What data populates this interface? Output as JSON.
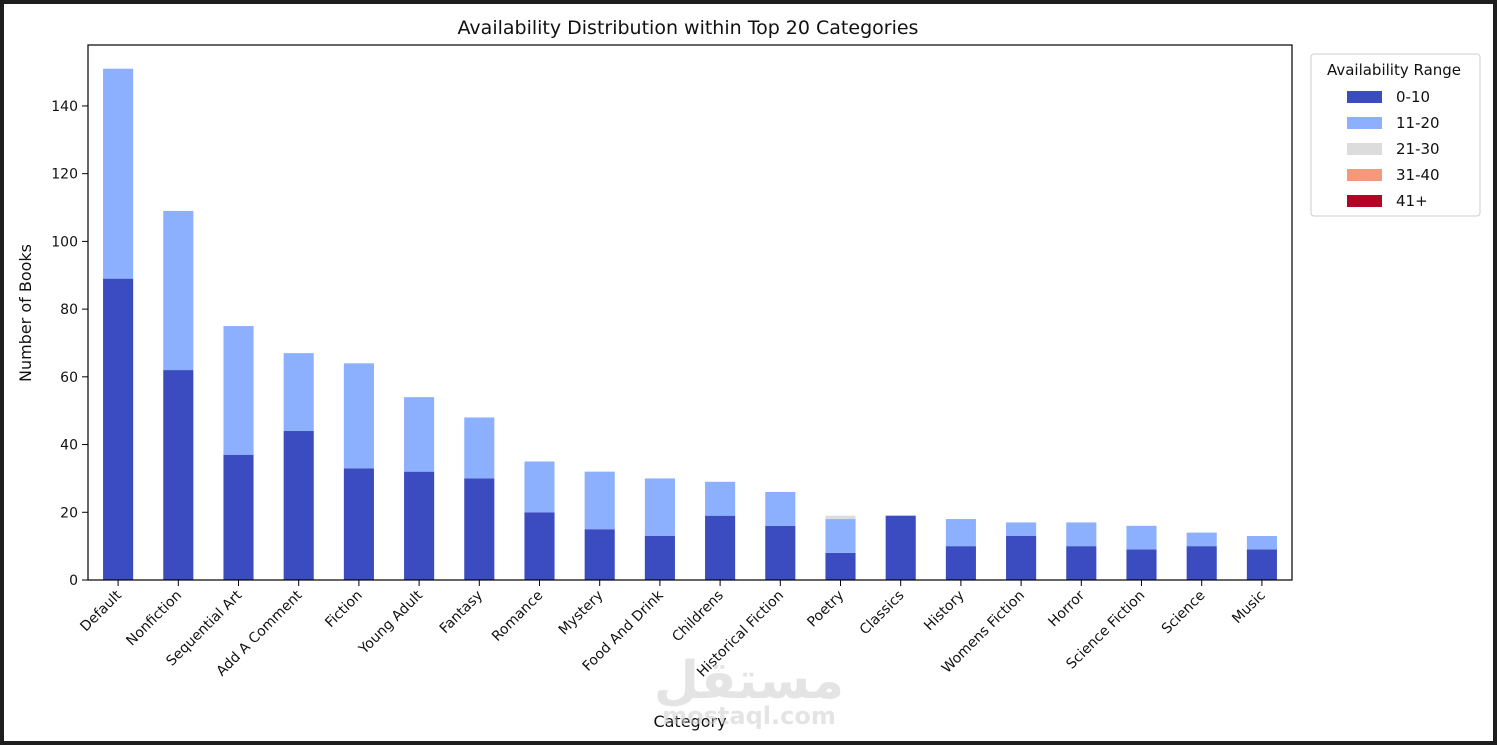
{
  "chart_data": {
    "type": "bar",
    "stacked": true,
    "title": "Availability Distribution within Top 20 Categories",
    "xlabel": "Category",
    "ylabel": "Number of Books",
    "ylim": [
      0,
      158
    ],
    "yticks": [
      0,
      20,
      40,
      60,
      80,
      100,
      120,
      140
    ],
    "categories": [
      "Default",
      "Nonfiction",
      "Sequential Art",
      "Add A Comment",
      "Fiction",
      "Young Adult",
      "Fantasy",
      "Romance",
      "Mystery",
      "Food And Drink",
      "Childrens",
      "Historical Fiction",
      "Poetry",
      "Classics",
      "History",
      "Womens Fiction",
      "Horror",
      "Science Fiction",
      "Science",
      "Music"
    ],
    "series": [
      {
        "name": "0-10",
        "color": "#3b4cc0",
        "values": [
          89,
          62,
          37,
          44,
          33,
          32,
          30,
          20,
          15,
          13,
          19,
          16,
          8,
          19,
          10,
          13,
          10,
          9,
          10,
          9
        ]
      },
      {
        "name": "11-20",
        "color": "#8db0fe",
        "values": [
          62,
          47,
          38,
          23,
          31,
          22,
          18,
          15,
          17,
          17,
          10,
          10,
          10,
          0,
          8,
          4,
          7,
          7,
          4,
          4
        ]
      },
      {
        "name": "21-30",
        "color": "#dddcdc",
        "values": [
          0,
          0,
          0,
          0,
          0,
          0,
          0,
          0,
          0,
          0,
          0,
          0,
          1,
          0,
          0,
          0,
          0,
          0,
          0,
          0
        ]
      },
      {
        "name": "31-40",
        "color": "#f49a7b",
        "values": [
          0,
          0,
          0,
          0,
          0,
          0,
          0,
          0,
          0,
          0,
          0,
          0,
          0,
          0,
          0,
          0,
          0,
          0,
          0,
          0
        ]
      },
      {
        "name": "41+",
        "color": "#b40426",
        "values": [
          0,
          0,
          0,
          0,
          0,
          0,
          0,
          0,
          0,
          0,
          0,
          0,
          0,
          0,
          0,
          0,
          0,
          0,
          0,
          0
        ]
      }
    ],
    "legend": {
      "title": "Availability Range",
      "placement": "outside-top-right"
    }
  },
  "watermark": {
    "text": "مستقل",
    "subtext": "mostaql.com"
  }
}
